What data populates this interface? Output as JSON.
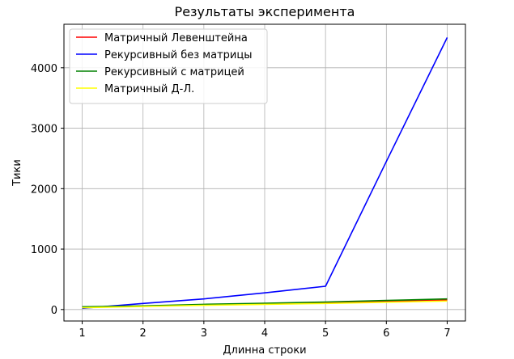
{
  "chart_data": {
    "type": "line",
    "title": "Результаты эксперимента",
    "xlabel": "Длинна строки",
    "ylabel": "Тики",
    "x": [
      1,
      2,
      3,
      4,
      5,
      6,
      7
    ],
    "xlim": [
      0.7,
      7.3
    ],
    "ylim": [
      -190,
      4720
    ],
    "xticks": [
      1,
      2,
      3,
      4,
      5,
      6,
      7
    ],
    "yticks": [
      0,
      1000,
      2000,
      3000,
      4000
    ],
    "grid": true,
    "legend_position": "top-left",
    "series": [
      {
        "name": "Матричный Левенштейна",
        "color": "#ff0000",
        "values": [
          40,
          55,
          75,
          95,
          115,
          135,
          155
        ]
      },
      {
        "name": "Рекурсивный без матрицы",
        "color": "#0000ff",
        "values": [
          20,
          100,
          175,
          275,
          385,
          2450,
          4500
        ]
      },
      {
        "name": "Рекурсивный с матрицей",
        "color": "#008000",
        "values": [
          45,
          60,
          85,
          105,
          125,
          150,
          175
        ]
      },
      {
        "name": "Матричный Д-Л.",
        "color": "#ffff00",
        "values": [
          30,
          50,
          70,
          85,
          100,
          120,
          140
        ]
      }
    ]
  }
}
